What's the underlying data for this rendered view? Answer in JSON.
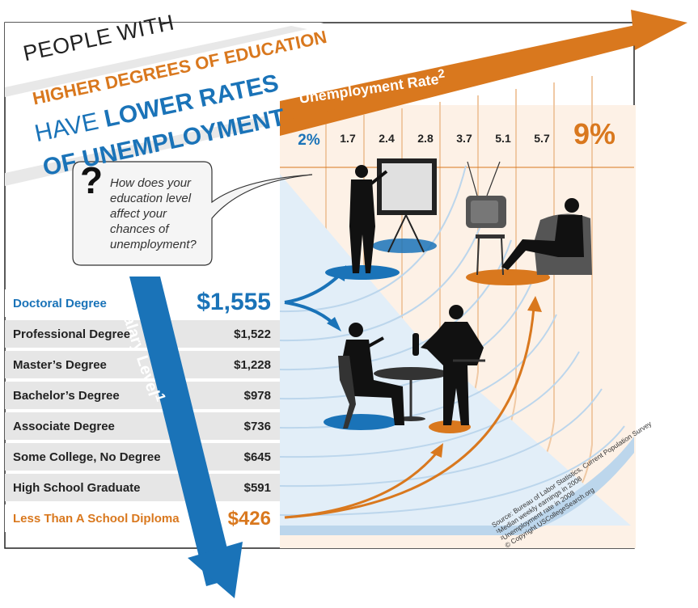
{
  "title": {
    "line1": "PEOPLE WITH",
    "line2": "HIGHER DEGREES OF EDUCATION",
    "line3_thin": "HAVE ",
    "line3_bold": "LOWER RATES",
    "line4": "OF UNEMPLOYMENT"
  },
  "question": {
    "mark": "?",
    "text": "How does your education level affect your chances of unemployment?"
  },
  "chart_data": {
    "type": "table",
    "salary_axis_title": "Salary Level",
    "salary_axis_footnote": "1",
    "unemployment_axis_title": "Unemployment Rate",
    "unemployment_axis_footnote": "2",
    "rows": [
      {
        "education": "Doctoral Degree",
        "salary": "$1,555",
        "salary_value": 1555,
        "unemployment_rate": 2.0
      },
      {
        "education": "Professional Degree",
        "salary": "$1,522",
        "salary_value": 1522,
        "unemployment_rate": 1.7
      },
      {
        "education": "Master’s Degree",
        "salary": "$1,228",
        "salary_value": 1228,
        "unemployment_rate": 2.4
      },
      {
        "education": "Bachelor’s Degree",
        "salary": "$978",
        "salary_value": 978,
        "unemployment_rate": 2.8
      },
      {
        "education": "Associate Degree",
        "salary": "$736",
        "salary_value": 736,
        "unemployment_rate": 3.7
      },
      {
        "education": "Some College, No Degree",
        "salary": "$645",
        "salary_value": 645,
        "unemployment_rate": 5.1
      },
      {
        "education": "High School Graduate",
        "salary": "$591",
        "salary_value": 591,
        "unemployment_rate": 5.7
      },
      {
        "education": "Less Than A School Diploma",
        "salary": "$426",
        "salary_value": 426,
        "unemployment_rate": 9.0
      }
    ],
    "rate_labels": [
      "2%",
      "1.7",
      "2.4",
      "2.8",
      "3.7",
      "5.1",
      "5.7",
      "9%"
    ]
  },
  "sources": [
    "Source: Bureau of Labor Statistics, Current Population Survey",
    "¹Median weekly earnings in 2008",
    "²Unemployment rate in 2008",
    "© Copyright USCollegeSearch.org"
  ],
  "colors": {
    "blue": "#1a73b8",
    "light_blue": "#cfe3f3",
    "orange": "#d9781e",
    "light_orange": "#f8e1cc",
    "row_gray": "#e6e6e6"
  },
  "icons": [
    "presenter-icon",
    "tv-viewer-icon",
    "dinner-icon",
    "waiter-icon"
  ]
}
